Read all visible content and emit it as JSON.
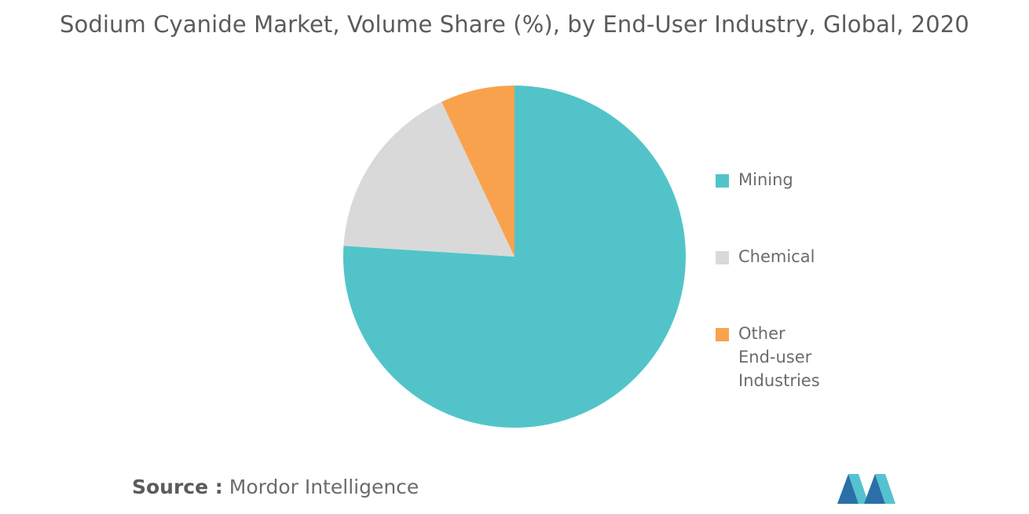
{
  "title": "Sodium Cyanide Market, Volume Share (%), by End-User Industry, Global, 2020",
  "source": {
    "key": "Source :",
    "value": "Mordor Intelligence"
  },
  "colors": {
    "mining": "#52c4c9",
    "chemical": "#d9d9d9",
    "other": "#f9a24d",
    "logo_dark": "#2a6fa8",
    "logo_light": "#55c2d0"
  },
  "logo_icon": "mordor-intelligence-logo-icon",
  "chart_data": {
    "type": "pie",
    "title": "Sodium Cyanide Market, Volume Share (%), by End-User Industry, Global, 2020",
    "start_angle_deg": 0,
    "direction": "clockwise",
    "slices": [
      {
        "label": "Mining",
        "value": 76,
        "color": "#52c4c9"
      },
      {
        "label": "Chemical",
        "value": 17,
        "color": "#d9d9d9"
      },
      {
        "label": "Other End-user Industries",
        "value": 7,
        "color": "#f9a24d"
      }
    ],
    "legend_position": "right",
    "legend": [
      {
        "label": "Mining",
        "lines": [
          "Mining"
        ]
      },
      {
        "label": "Chemical",
        "lines": [
          "Chemical"
        ]
      },
      {
        "label": "Other End-user Industries",
        "lines": [
          "Other",
          "End-user",
          "Industries"
        ]
      }
    ]
  }
}
